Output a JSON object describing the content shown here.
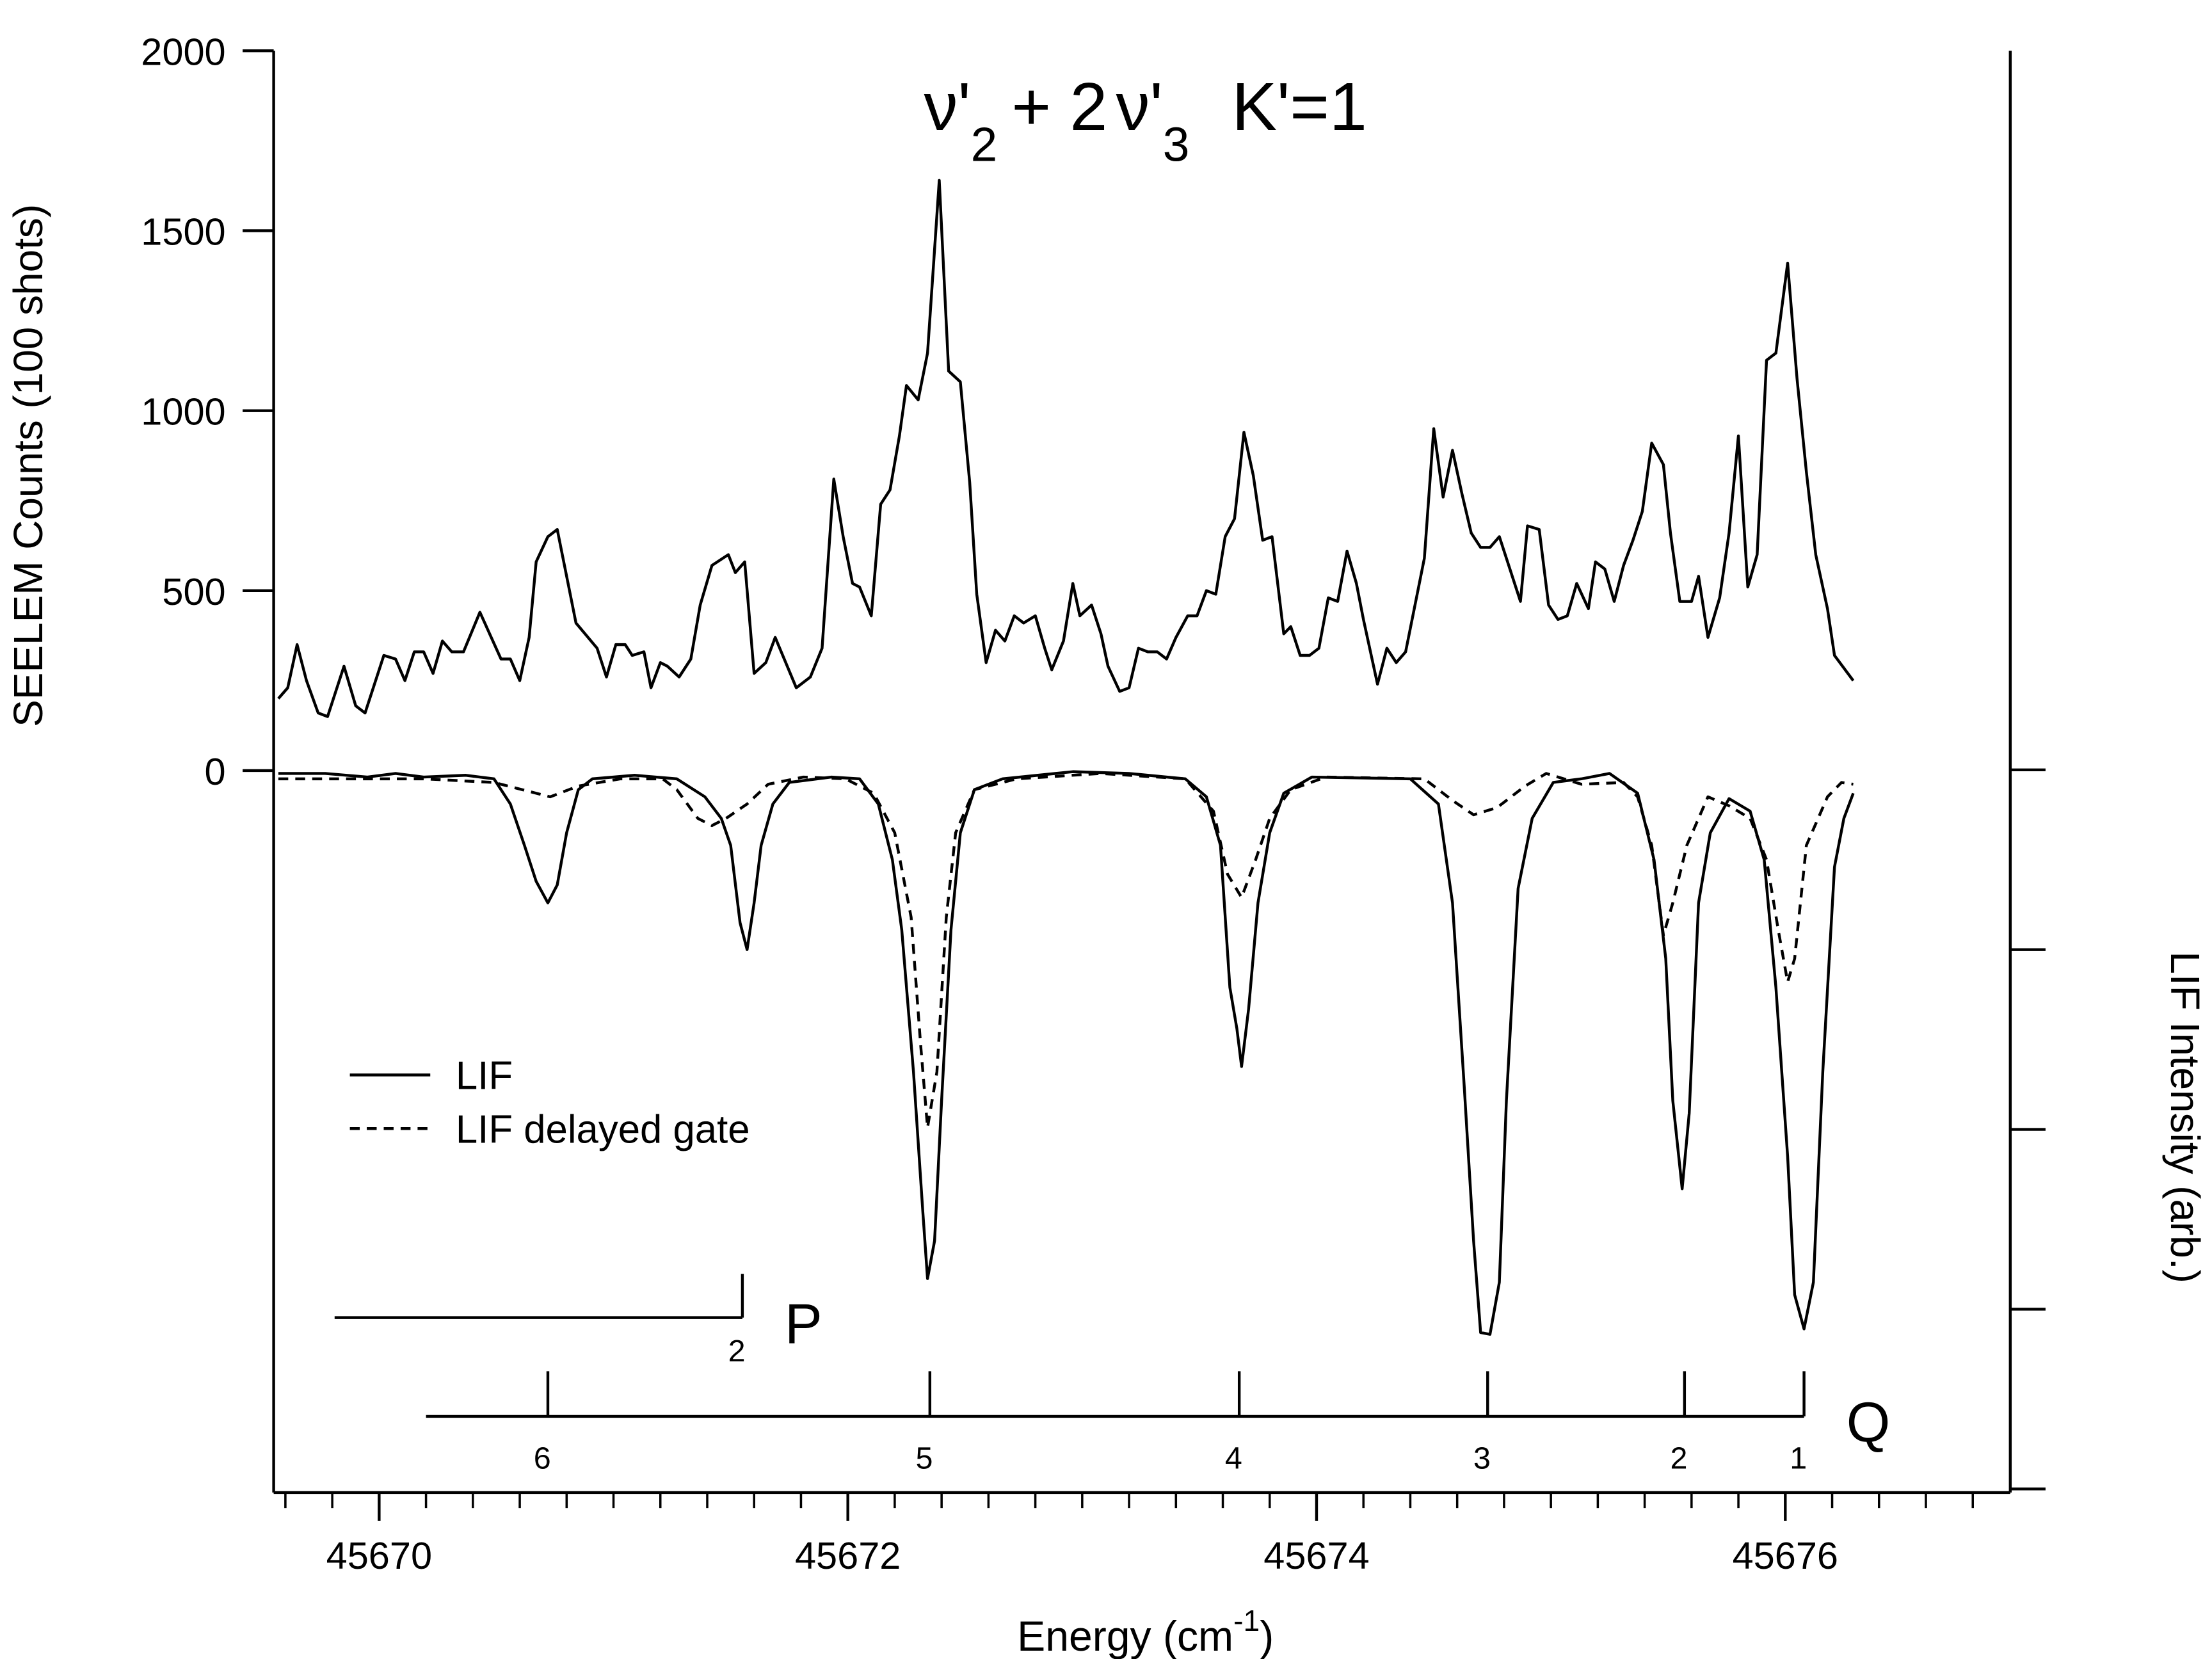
{
  "chart_data": {
    "type": "line",
    "title": [
      "ν'",
      "2",
      "+ 2",
      "ν'",
      "3",
      "K'=1"
    ],
    "ylabel": "SEELEM Counts (100 shots)",
    "y2label": "LIF Intensity (arb.)",
    "xlabel": [
      "Energy (cm",
      "-1",
      ")"
    ],
    "xlim": [
      45669.55,
      45676.96
    ],
    "xticks": [
      45670,
      45672,
      45674,
      45676
    ],
    "xminorticks": [
      45669.6,
      45669.8,
      45670.2,
      45670.4,
      45670.6,
      45670.8,
      45671,
      45671.2,
      45671.4,
      45671.6,
      45671.8,
      45672.2,
      45672.4,
      45672.6,
      45672.8,
      45673,
      45673.2,
      45673.4,
      45673.6,
      45673.8,
      45674.2,
      45674.4,
      45674.6,
      45674.8,
      45675,
      45675.2,
      45675.4,
      45675.6,
      45675.8,
      45676.2,
      45676.4,
      45676.6,
      45676.8
    ],
    "ylim": [
      -2006,
      2000
    ],
    "yticks": [
      0,
      500,
      1000,
      1500,
      2000
    ],
    "y2lim": [
      -4.02,
      4
    ],
    "y2ticks": [
      0,
      -1,
      -2,
      -3,
      -4
    ],
    "legend": "center-left",
    "series": [
      {
        "color": "#000000",
        "dash": "solid",
        "x": [
          45669.57,
          45669.61,
          45669.65,
          45669.69,
          45669.74,
          45669.78,
          45669.85,
          45669.9,
          45669.94,
          45670.02,
          45670.07,
          45670.11,
          45670.15,
          45670.19,
          45670.23,
          45670.27,
          45670.31,
          45670.36,
          45670.43,
          45670.52,
          45670.56,
          45670.6,
          45670.64,
          45670.67,
          45670.72,
          45670.76,
          45670.8,
          45670.84,
          45670.93,
          45670.97,
          45671.01,
          45671.05,
          45671.08,
          45671.13,
          45671.16,
          45671.2,
          45671.23,
          45671.28,
          45671.33,
          45671.37,
          45671.42,
          45671.49,
          45671.52,
          45671.56,
          45671.6,
          45671.65,
          45671.69,
          45671.78,
          45671.84,
          45671.89,
          45671.94,
          45671.98,
          45672.02,
          45672.05,
          45672.1,
          45672.14,
          45672.18,
          45672.22,
          45672.25,
          45672.3,
          45672.34,
          45672.39,
          45672.43,
          45672.48,
          45672.52,
          45672.55,
          45672.59,
          45672.63,
          45672.67,
          45672.71,
          45672.75,
          45672.8,
          45672.84,
          45672.87,
          45672.92,
          45672.96,
          45672.99,
          45673.04,
          45673.08,
          45673.11,
          45673.16,
          45673.2,
          45673.24,
          45673.28,
          45673.32,
          45673.36,
          45673.4,
          45673.45,
          45673.49,
          45673.53,
          45673.57,
          45673.61,
          45673.65,
          45673.69,
          45673.73,
          45673.77,
          45673.81,
          45673.86,
          45673.89,
          45673.93,
          45673.97,
          45674.01,
          45674.05,
          45674.09,
          45674.13,
          45674.17,
          45674.2,
          45674.26,
          45674.3,
          45674.34,
          45674.38,
          45674.42,
          45674.46,
          45674.5,
          45674.54,
          45674.58,
          45674.62,
          45674.66,
          45674.7,
          45674.74,
          45674.78,
          45674.83,
          45674.87,
          45674.9,
          45674.95,
          45674.99,
          45675.03,
          45675.07,
          45675.11,
          45675.16,
          45675.19,
          45675.23,
          45675.27,
          45675.31,
          45675.35,
          45675.39,
          45675.43,
          45675.48,
          45675.51,
          45675.55,
          45675.6,
          45675.63,
          45675.67,
          45675.72,
          45675.76,
          45675.8,
          45675.84,
          45675.88,
          45675.92,
          45675.96,
          45676.01,
          45676.05,
          45676.09,
          45676.13,
          45676.18,
          45676.21,
          45676.29
        ],
        "values": [
          200,
          230,
          350,
          250,
          160,
          150,
          290,
          180,
          160,
          320,
          310,
          250,
          330,
          330,
          270,
          360,
          330,
          330,
          440,
          310,
          310,
          250,
          370,
          580,
          650,
          670,
          540,
          410,
          340,
          260,
          350,
          350,
          320,
          330,
          230,
          300,
          290,
          260,
          310,
          460,
          570,
          600,
          550,
          580,
          270,
          300,
          370,
          230,
          260,
          340,
          810,
          650,
          520,
          510,
          430,
          740,
          780,
          930,
          1070,
          1030,
          1160,
          1640,
          1110,
          1080,
          800,
          490,
          300,
          390,
          360,
          430,
          410,
          430,
          340,
          280,
          360,
          520,
          430,
          460,
          380,
          290,
          220,
          230,
          340,
          330,
          330,
          310,
          370,
          430,
          430,
          500,
          490,
          650,
          700,
          940,
          820,
          640,
          650,
          380,
          400,
          320,
          320,
          340,
          480,
          470,
          610,
          520,
          420,
          240,
          340,
          300,
          330,
          460,
          590,
          950,
          760,
          890,
          770,
          660,
          620,
          620,
          650,
          550,
          470,
          680,
          670,
          460,
          420,
          430,
          520,
          450,
          580,
          560,
          470,
          570,
          640,
          720,
          910,
          850,
          660,
          470,
          470,
          540,
          370,
          480,
          660,
          930,
          510,
          600,
          1140,
          1160,
          1410,
          1090,
          830,
          600,
          450,
          320,
          250
        ]
      },
      {
        "name": "LIF",
        "axis": "y2",
        "color": "#000000",
        "dash": "solid",
        "x": [
          45669.57,
          45669.77,
          45669.95,
          45670.07,
          45670.19,
          45670.37,
          45670.49,
          45670.56,
          45670.62,
          45670.67,
          45670.72,
          45670.76,
          45670.8,
          45670.85,
          45670.91,
          45671.09,
          45671.27,
          45671.39,
          45671.46,
          45671.5,
          45671.54,
          45671.57,
          45671.6,
          45671.63,
          45671.68,
          45671.75,
          45671.93,
          45672.05,
          45672.13,
          45672.19,
          45672.23,
          45672.28,
          45672.32,
          45672.34,
          45672.37,
          45672.4,
          45672.44,
          45672.48,
          45672.54,
          45672.66,
          45672.96,
          45673.2,
          45673.44,
          45673.53,
          45673.59,
          45673.63,
          45673.66,
          45673.68,
          45673.71,
          45673.75,
          45673.8,
          45673.86,
          45673.98,
          45674.4,
          45674.52,
          45674.58,
          45674.63,
          45674.67,
          45674.7,
          45674.74,
          45674.78,
          45674.81,
          45674.86,
          45674.92,
          45675.01,
          45675.13,
          45675.25,
          45675.37,
          45675.44,
          45675.49,
          45675.52,
          45675.56,
          45675.59,
          45675.63,
          45675.68,
          45675.76,
          45675.85,
          45675.91,
          45675.96,
          45676.01,
          45676.04,
          45676.08,
          45676.12,
          45676.16,
          45676.21,
          45676.25,
          45676.29
        ],
        "values": [
          -0.02,
          -0.02,
          -0.04,
          -0.02,
          -0.04,
          -0.03,
          -0.05,
          -0.19,
          -0.42,
          -0.62,
          -0.74,
          -0.64,
          -0.35,
          -0.11,
          -0.05,
          -0.03,
          -0.05,
          -0.15,
          -0.27,
          -0.42,
          -0.85,
          -1,
          -0.74,
          -0.42,
          -0.19,
          -0.07,
          -0.04,
          -0.05,
          -0.19,
          -0.5,
          -0.89,
          -1.68,
          -2.46,
          -2.83,
          -2.62,
          -1.84,
          -0.89,
          -0.35,
          -0.11,
          -0.05,
          -0.01,
          -0.02,
          -0.05,
          -0.15,
          -0.42,
          -1.21,
          -1.44,
          -1.65,
          -1.33,
          -0.74,
          -0.35,
          -0.13,
          -0.04,
          -0.05,
          -0.19,
          -0.74,
          -1.76,
          -2.62,
          -3.13,
          -3.14,
          -2.85,
          -1.84,
          -0.66,
          -0.27,
          -0.07,
          -0.05,
          -0.02,
          -0.13,
          -0.5,
          -1.05,
          -1.84,
          -2.33,
          -1.91,
          -0.74,
          -0.35,
          -0.16,
          -0.23,
          -0.5,
          -1.21,
          -2.15,
          -2.92,
          -3.11,
          -2.85,
          -1.68,
          -0.54,
          -0.27,
          -0.13
        ]
      },
      {
        "name": "LIF delayed gate",
        "axis": "y2",
        "color": "#000000",
        "dash": "dashed",
        "x": [
          45669.57,
          45670.19,
          45670.49,
          45670.61,
          45670.73,
          45670.85,
          45671.03,
          45671.21,
          45671.27,
          45671.36,
          45671.42,
          45671.48,
          45671.57,
          45671.66,
          45671.81,
          45671.99,
          45672.11,
          45672.2,
          45672.27,
          45672.31,
          45672.34,
          45672.38,
          45672.42,
          45672.46,
          45672.54,
          45672.72,
          45673.08,
          45673.44,
          45673.56,
          45673.62,
          45673.68,
          45673.74,
          45673.8,
          45673.89,
          45674.04,
          45674.46,
          45674.58,
          45674.67,
          45674.77,
          45674.89,
          45674.98,
          45675.13,
          45675.31,
          45675.37,
          45675.43,
          45675.48,
          45675.52,
          45675.58,
          45675.67,
          45675.76,
          45675.85,
          45675.92,
          45675.97,
          45676.01,
          45676.04,
          45676.09,
          45676.18,
          45676.24,
          45676.29
        ],
        "values": [
          -0.05,
          -0.05,
          -0.07,
          -0.11,
          -0.15,
          -0.09,
          -0.05,
          -0.05,
          -0.11,
          -0.27,
          -0.31,
          -0.27,
          -0.19,
          -0.08,
          -0.04,
          -0.05,
          -0.13,
          -0.35,
          -0.82,
          -1.52,
          -1.99,
          -1.68,
          -0.82,
          -0.35,
          -0.11,
          -0.05,
          -0.02,
          -0.05,
          -0.23,
          -0.58,
          -0.71,
          -0.5,
          -0.27,
          -0.11,
          -0.04,
          -0.05,
          -0.17,
          -0.25,
          -0.21,
          -0.09,
          -0.02,
          -0.08,
          -0.07,
          -0.15,
          -0.42,
          -0.92,
          -0.74,
          -0.42,
          -0.15,
          -0.2,
          -0.27,
          -0.5,
          -0.89,
          -1.18,
          -1.05,
          -0.42,
          -0.15,
          -0.07,
          -0.08
        ]
      }
    ],
    "annotations": [
      {
        "label": "P",
        "start": 45669.81,
        "lines": [
          {
            "x": 45671.55,
            "j": 2
          }
        ]
      },
      {
        "label": "Q",
        "start": 45670.2,
        "lines": [
          {
            "x": 45670.72,
            "j": 6
          },
          {
            "x": 45672.35,
            "j": 5
          },
          {
            "x": 45673.67,
            "j": 4
          },
          {
            "x": 45674.73,
            "j": 3
          },
          {
            "x": 45675.57,
            "j": 2
          },
          {
            "x": 45676.08,
            "j": 1
          }
        ]
      }
    ]
  }
}
